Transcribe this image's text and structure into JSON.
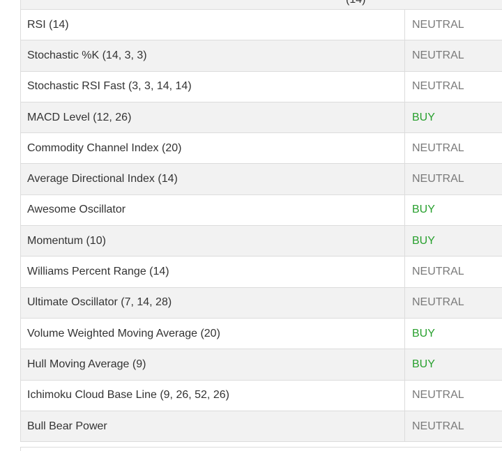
{
  "table": {
    "header_partial_text": "(14)",
    "rows": [
      {
        "name": "RSI (14)",
        "signal": "NEUTRAL",
        "type": "neutral"
      },
      {
        "name": "Stochastic %K (14, 3, 3)",
        "signal": "NEUTRAL",
        "type": "neutral"
      },
      {
        "name": "Stochastic RSI Fast (3, 3, 14, 14)",
        "signal": "NEUTRAL",
        "type": "neutral"
      },
      {
        "name": "MACD Level (12, 26)",
        "signal": "BUY",
        "type": "buy"
      },
      {
        "name": "Commodity Channel Index (20)",
        "signal": "NEUTRAL",
        "type": "neutral"
      },
      {
        "name": "Average Directional Index (14)",
        "signal": "NEUTRAL",
        "type": "neutral"
      },
      {
        "name": "Awesome Oscillator",
        "signal": "BUY",
        "type": "buy"
      },
      {
        "name": "Momentum (10)",
        "signal": "BUY",
        "type": "buy"
      },
      {
        "name": "Williams Percent Range (14)",
        "signal": "NEUTRAL",
        "type": "neutral"
      },
      {
        "name": "Ultimate Oscillator (7, 14, 28)",
        "signal": "NEUTRAL",
        "type": "neutral"
      },
      {
        "name": "Volume Weighted Moving Average (20)",
        "signal": "BUY",
        "type": "buy"
      },
      {
        "name": "Hull Moving Average (9)",
        "signal": "BUY",
        "type": "buy"
      },
      {
        "name": "Ichimoku Cloud Base Line (9, 26, 52, 26)",
        "signal": "NEUTRAL",
        "type": "neutral"
      },
      {
        "name": "Bull Bear Power",
        "signal": "NEUTRAL",
        "type": "neutral"
      }
    ]
  },
  "colors": {
    "buy": "#28a02e",
    "neutral": "#7a7a7a",
    "row_alt": "#f2f2f2",
    "border": "#dcdcdc"
  }
}
